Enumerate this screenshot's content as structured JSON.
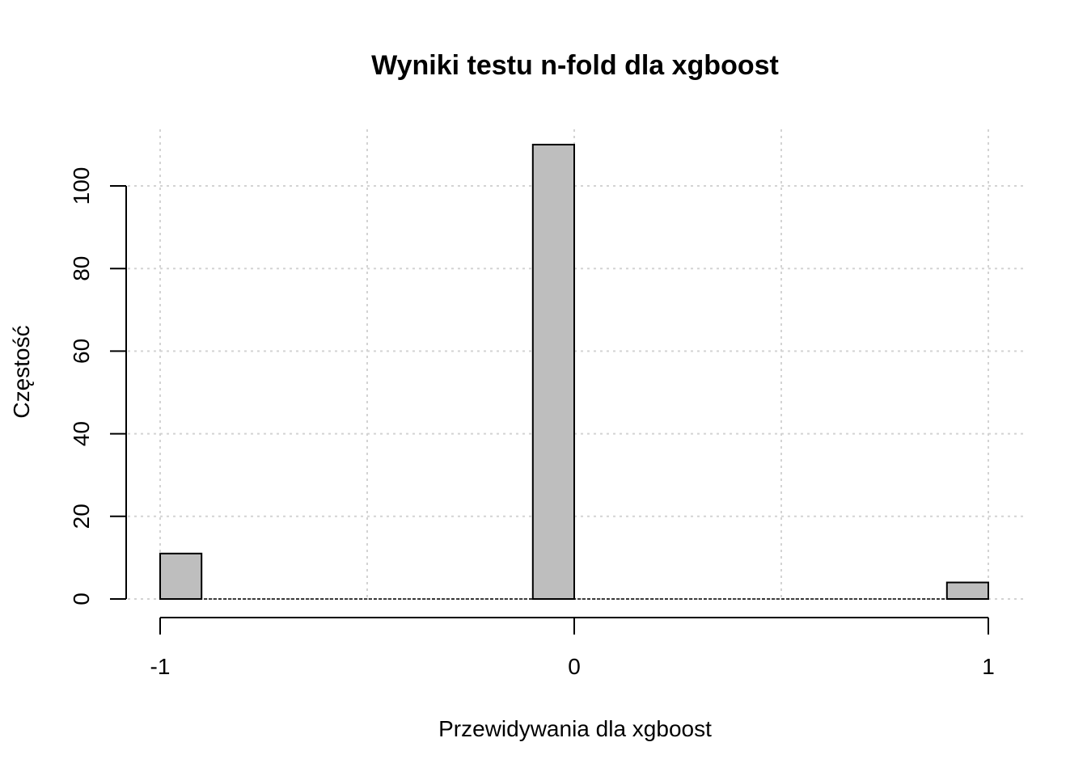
{
  "chart_data": {
    "type": "bar",
    "title": "Wyniki testu n-fold dla xgboost",
    "xlabel": "Przewidywania dla xgboost",
    "ylabel": "Częstość",
    "bins": [
      {
        "x_start": -1.0,
        "x_end": -0.9,
        "value": 11
      },
      {
        "x_start": -0.1,
        "x_end": 0.0,
        "value": 110
      },
      {
        "x_start": 0.9,
        "x_end": 1.0,
        "value": 4
      }
    ],
    "x_ticks": [
      -1,
      0,
      1
    ],
    "x_tick_labels": [
      "-1",
      "0",
      "1"
    ],
    "y_ticks": [
      0,
      20,
      40,
      60,
      80,
      100
    ],
    "y_tick_labels": [
      "0",
      "20",
      "40",
      "60",
      "80",
      "100"
    ],
    "xlim": [
      -1,
      1
    ],
    "ylim": [
      0,
      100
    ],
    "grid": true,
    "grid_x": [
      -1,
      -0.5,
      0,
      0.5,
      1
    ],
    "grid_y": [
      0,
      20,
      40,
      60,
      80,
      100
    ],
    "bar_color": "#bebebe",
    "grid_color": "#d3d3d3"
  }
}
